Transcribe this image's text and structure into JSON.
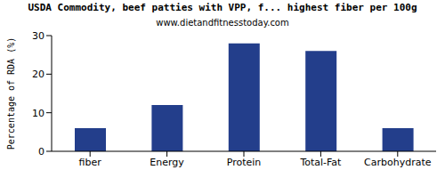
{
  "chart_data": {
    "type": "bar",
    "title": "USDA Commodity, beef patties with VPP, f... highest fiber per 100g",
    "subtitle": "www.dietandfitnesstoday.com",
    "y_label": "Percentage of RDA (%)",
    "categories": [
      "fiber",
      "Energy",
      "Protein",
      "Total-Fat",
      "Carbohydrate"
    ],
    "values": [
      6,
      12,
      28,
      26,
      6
    ],
    "color": "#233e8b",
    "ylim": [
      0,
      30
    ],
    "yticks": [
      0,
      10,
      20,
      30
    ],
    "grid": false
  }
}
